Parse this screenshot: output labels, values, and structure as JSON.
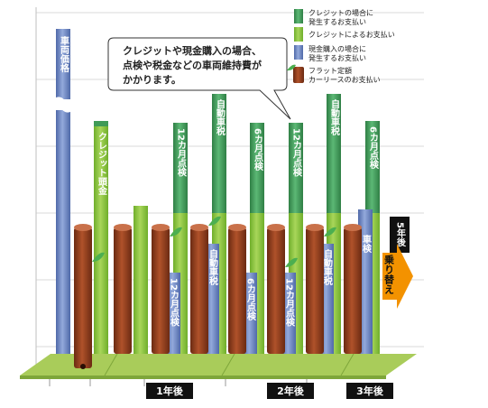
{
  "callout": {
    "line1": "クレジットや現金購入の場合、",
    "line2": "点検や税金などの車両維持費が",
    "line3": "かかります。"
  },
  "legend": {
    "credit_extra_line1": "クレジットの場合に",
    "credit_extra_line2": "発生するお支払い",
    "credit_payment": "クレジットによるお支払い",
    "cash_extra_line1": "現金購入の場合に",
    "cash_extra_line2": "発生するお支払い",
    "flat_line1": "フラット定額",
    "flat_line2": "カーリースのお支払い"
  },
  "labels": {
    "vehicle_price": "車両価格",
    "credit_down": "クレジット頭金",
    "inspection_12": "12カ月点検",
    "car_tax": "自動車税",
    "inspection_6": "6カ月点検",
    "car_tax_cash_1": "自動車税",
    "inspection_6_cash": "6カ月点検",
    "inspection_12_cash": "12カ月点検",
    "car_tax_cash_2": "自動車税",
    "vehicle_short": "車検",
    "year_5": "5年後",
    "switch": "乗り替え"
  },
  "years": [
    "1年後",
    "2年後",
    "3年後"
  ],
  "colors": {
    "green_dark": "#3f9b57",
    "green_light": "#8cc63f",
    "blue": "#6b86c4",
    "brown": "#8b3e1f",
    "ground": "#a9cc5a",
    "orange": "#f39200"
  }
}
